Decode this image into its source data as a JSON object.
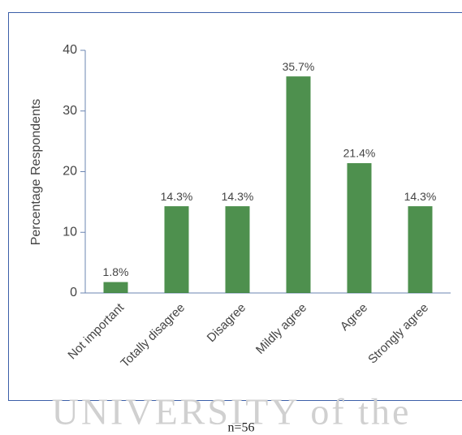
{
  "chart_data": {
    "type": "bar",
    "y_label": "Percentage Respondents",
    "categories": [
      "Not important",
      "Totally disagree",
      "Disagree",
      "Mildly agree",
      "Agree",
      "Strongly agree"
    ],
    "values": [
      1.8,
      14.3,
      14.3,
      35.7,
      21.4,
      14.3
    ],
    "value_labels": [
      "1.8%",
      "14.3%",
      "14.3%",
      "35.7%",
      "21.4%",
      "14.3%"
    ],
    "color": "#2f7d2f",
    "ylim": [
      0,
      40
    ],
    "yticks": [
      0,
      10,
      20,
      30,
      40
    ],
    "grid": false
  },
  "caption": "n=56",
  "watermark": "UNIVERSITY of the"
}
